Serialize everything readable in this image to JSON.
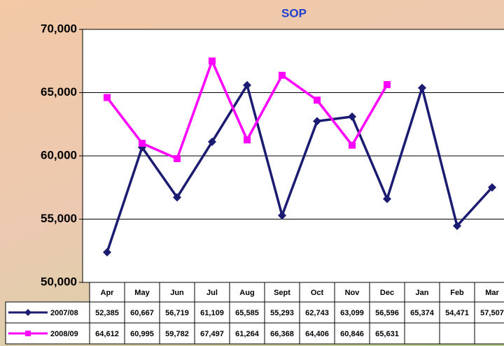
{
  "chart_data": {
    "type": "line",
    "title": "SOP",
    "categories": [
      "Apr",
      "May",
      "Jun",
      "Jul",
      "Aug",
      "Sept",
      "Oct",
      "Nov",
      "Dec",
      "Jan",
      "Feb",
      "Mar"
    ],
    "series": [
      {
        "name": "2007/08",
        "color": "#1b1b72",
        "marker": "diamond",
        "values": [
          52385,
          60667,
          56719,
          61109,
          65585,
          55293,
          62743,
          63099,
          56596,
          65374,
          54471,
          57507
        ],
        "value_labels": [
          "52,385",
          "60,667",
          "56,719",
          "61,109",
          "65,585",
          "55,293",
          "62,743",
          "63,099",
          "56,596",
          "65,374",
          "54,471",
          "57,507"
        ]
      },
      {
        "name": "2008/09",
        "color": "#ff00ff",
        "marker": "square",
        "values": [
          64612,
          60995,
          59782,
          67497,
          61264,
          66368,
          64406,
          60846,
          65631,
          null,
          null,
          null
        ],
        "value_labels": [
          "64,612",
          "60,995",
          "59,782",
          "67,497",
          "61,264",
          "66,368",
          "64,406",
          "60,846",
          "65,631",
          null,
          null,
          null
        ]
      }
    ],
    "ylim": [
      50000,
      70000
    ],
    "yticks": [
      {
        "value": 50000,
        "label": "50,000"
      },
      {
        "value": 55000,
        "label": "55,000"
      },
      {
        "value": 60000,
        "label": "60,000"
      },
      {
        "value": 65000,
        "label": "65,000"
      },
      {
        "value": 70000,
        "label": "70,000"
      }
    ],
    "grid": true
  }
}
